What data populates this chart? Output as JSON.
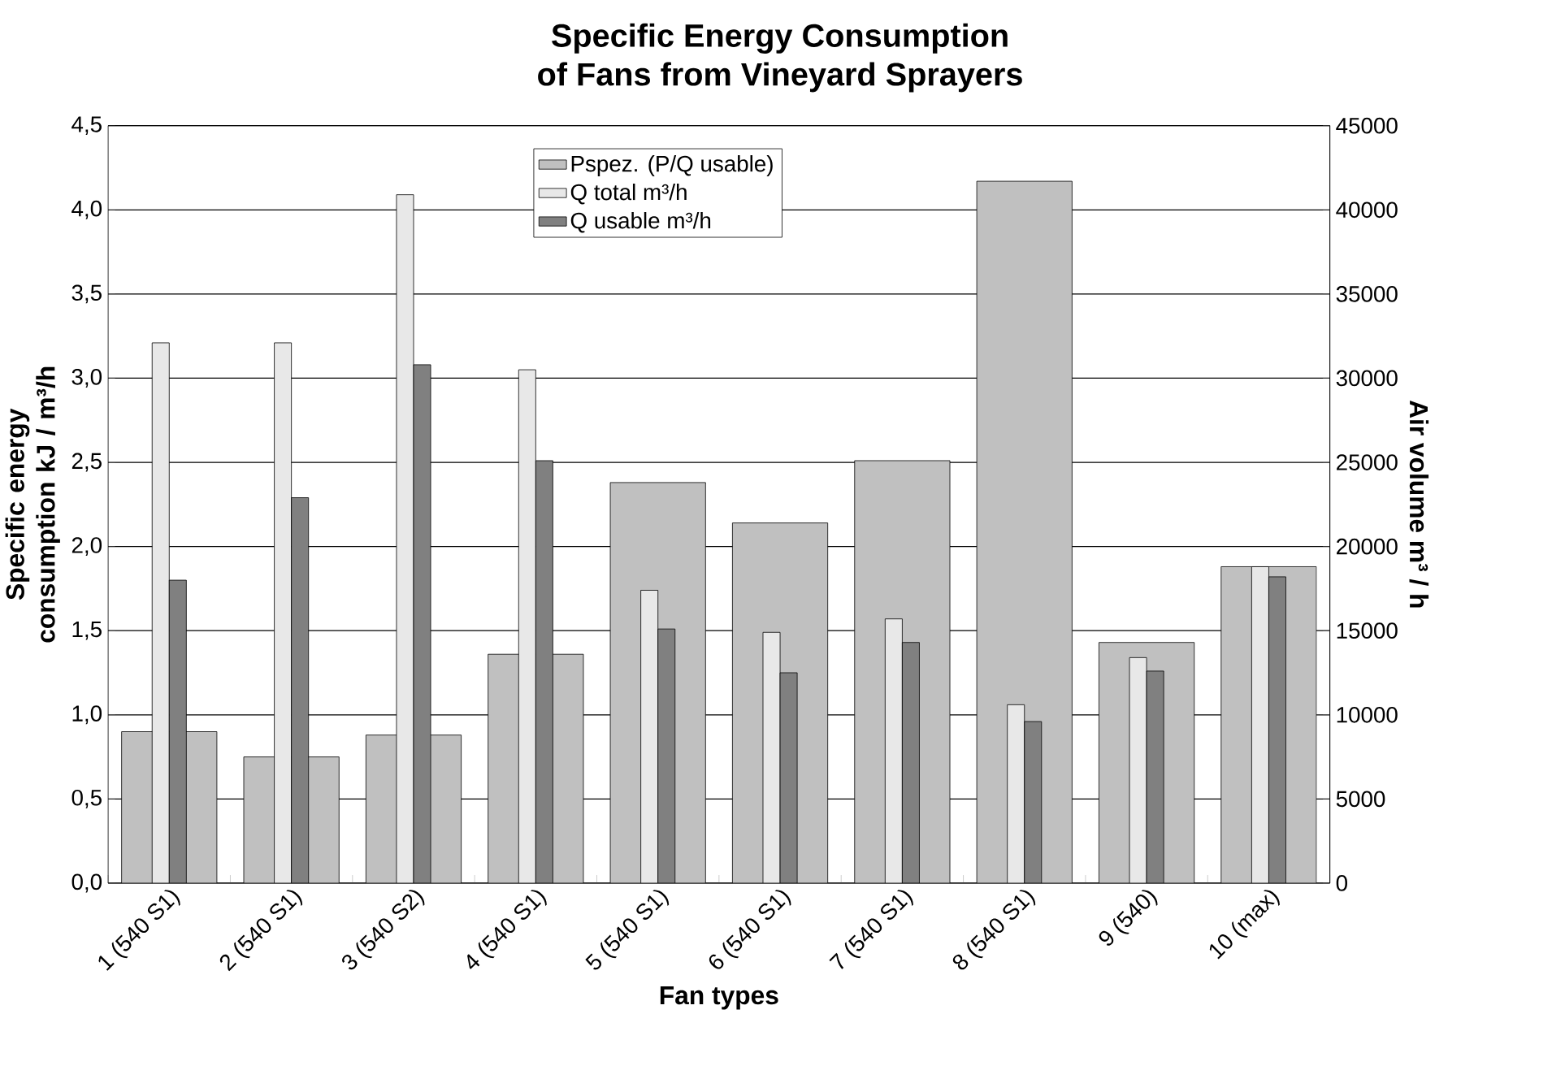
{
  "chart_data": {
    "type": "bar",
    "title": "Specific Energy Consumption",
    "subtitle": "of Fans from Vineyard Sprayers",
    "xlabel": "Fan types",
    "ylabel": "Specific energy consumption kJ / m³/h",
    "y2label": "Air volume m³ / h",
    "categories": [
      "1 (540 S1)",
      "2 (540 S1)",
      "3 (540 S2)",
      "4 (540 S1)",
      "5 (540 S1)",
      "6 (540 S1)",
      "7 (540 S1)",
      "8 (540 S1)",
      "9 (540)",
      "10 (max)"
    ],
    "series": [
      {
        "name": "Pspez. (P/Q usable)",
        "color": "#c0c0c0",
        "values": [
          0.9,
          0.75,
          0.88,
          1.36,
          2.38,
          2.14,
          2.51,
          4.17,
          1.43,
          1.88
        ]
      },
      {
        "name": "Q total m³/h",
        "color": "#e8e8e8",
        "axis": "y2",
        "values": [
          32100,
          32100,
          40900,
          30500,
          17400,
          14900,
          15700,
          10600,
          13400,
          18800
        ]
      },
      {
        "name": "Q usable m³/h",
        "color": "#808080",
        "axis": "y2",
        "values": [
          18000,
          22900,
          30800,
          25100,
          15100,
          12500,
          14300,
          9600,
          12600,
          18200
        ]
      }
    ],
    "ylim": [
      0,
      4.5
    ],
    "yticks": [
      {
        "value": 0,
        "label": "0,0"
      },
      {
        "value": 0.5,
        "label": "0,5"
      },
      {
        "value": 1,
        "label": "1,0"
      },
      {
        "value": 1.5,
        "label": "1,5"
      },
      {
        "value": 2,
        "label": "2,0"
      },
      {
        "value": 2.5,
        "label": "2,5"
      },
      {
        "value": 3,
        "label": "3,0"
      },
      {
        "value": 3.5,
        "label": "3,5"
      },
      {
        "value": 4,
        "label": "4,0"
      },
      {
        "value": 4.5,
        "label": "4,5"
      }
    ],
    "y2lim": [
      0,
      45000
    ],
    "y2ticks": [
      0,
      5000,
      10000,
      15000,
      20000,
      25000,
      30000,
      35000,
      40000,
      45000
    ],
    "grid": "y",
    "legend": "top"
  }
}
